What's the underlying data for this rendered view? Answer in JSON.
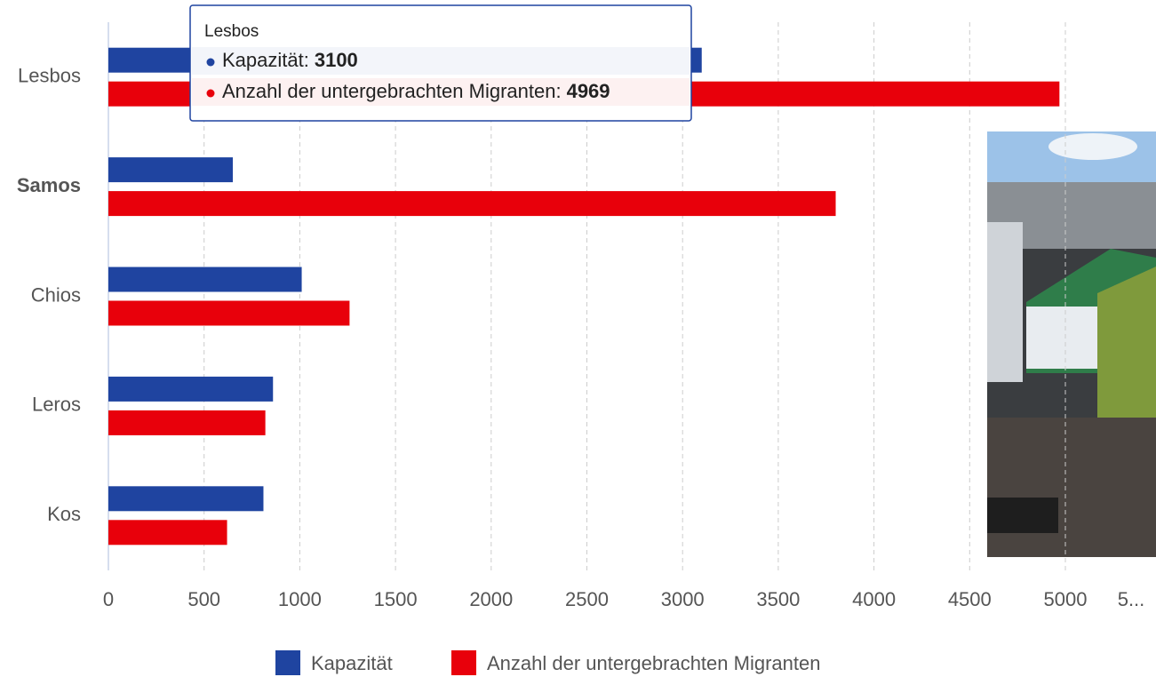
{
  "chart_data": {
    "type": "barh",
    "categories": [
      "Lesbos",
      "Samos",
      "Chios",
      "Leros",
      "Kos"
    ],
    "series": [
      {
        "name": "Kapazität",
        "color": "#1f44a0",
        "values": [
          3100,
          650,
          1010,
          860,
          810
        ]
      },
      {
        "name": "Anzahl der untergebrachten Migranten",
        "color": "#e8000b",
        "values": [
          4969,
          3800,
          1260,
          820,
          620
        ]
      }
    ],
    "xlim": [
      0,
      5500
    ],
    "xticks": [
      0,
      500,
      1000,
      1500,
      2000,
      2500,
      3000,
      3500,
      4000,
      4500,
      5000,
      {
        "value": 5500,
        "label": "5..."
      }
    ],
    "grid": true,
    "legend": "bottom",
    "highlight": "Samos",
    "tooltip": {
      "rows": [
        {
          "label": "Kapazität:"
        },
        {
          "label": "Anzahl der untergebrachten Migranten:"
        }
      ]
    }
  }
}
